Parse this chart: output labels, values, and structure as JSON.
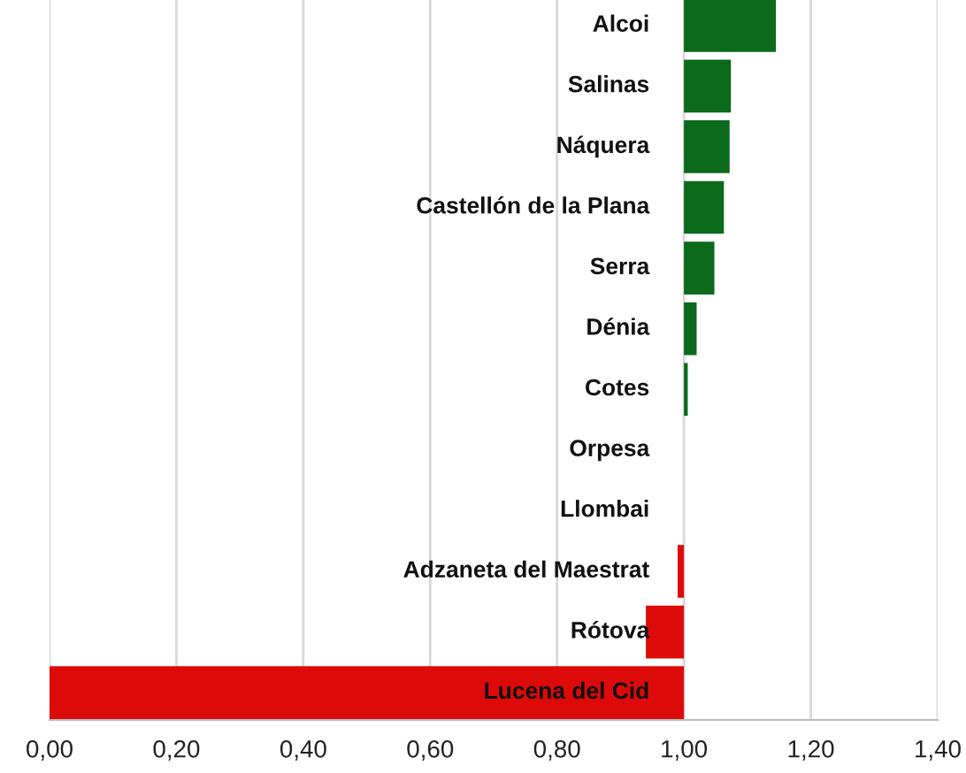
{
  "chart_data": {
    "type": "bar",
    "orientation": "horizontal",
    "categories": [
      "Alcoi",
      "Salinas",
      "Náquera",
      "Castellón de la Plana",
      "Serra",
      "Dénia",
      "Cotes",
      "Orpesa",
      "Llombai",
      "Adzaneta del Maestrat",
      "Rótova",
      "Lucena del Cid"
    ],
    "base": [
      1.0,
      1.0,
      1.0,
      1.0,
      1.0,
      1.0,
      1.0,
      null,
      null,
      1.0,
      1.0,
      1.0
    ],
    "values": [
      0.145,
      0.074,
      0.072,
      0.063,
      0.048,
      0.02,
      0.006,
      null,
      null,
      -0.01,
      -0.06,
      -1.0
    ],
    "colors": [
      "#0b6a1b",
      "#0b6a1b",
      "#0b6a1b",
      "#0b6a1b",
      "#0b6a1b",
      "#0b6a1b",
      "#0b6a1b",
      "#0b6a1b",
      "#0b6a1b",
      "#dd0a0a",
      "#dd0a0a",
      "#dd0a0a"
    ],
    "xlim": [
      0,
      1.4
    ],
    "xticks": [
      {
        "value": 0,
        "label": "0,00"
      },
      {
        "value": 0.2,
        "label": "0,20"
      },
      {
        "value": 0.4,
        "label": "0,40"
      },
      {
        "value": 0.6,
        "label": "0,60"
      },
      {
        "value": 0.8,
        "label": "0,80"
      },
      {
        "value": 1.0,
        "label": "1,00"
      },
      {
        "value": 1.2,
        "label": "1,20"
      },
      {
        "value": 1.4,
        "label": "1,40"
      }
    ],
    "grid": "x"
  }
}
